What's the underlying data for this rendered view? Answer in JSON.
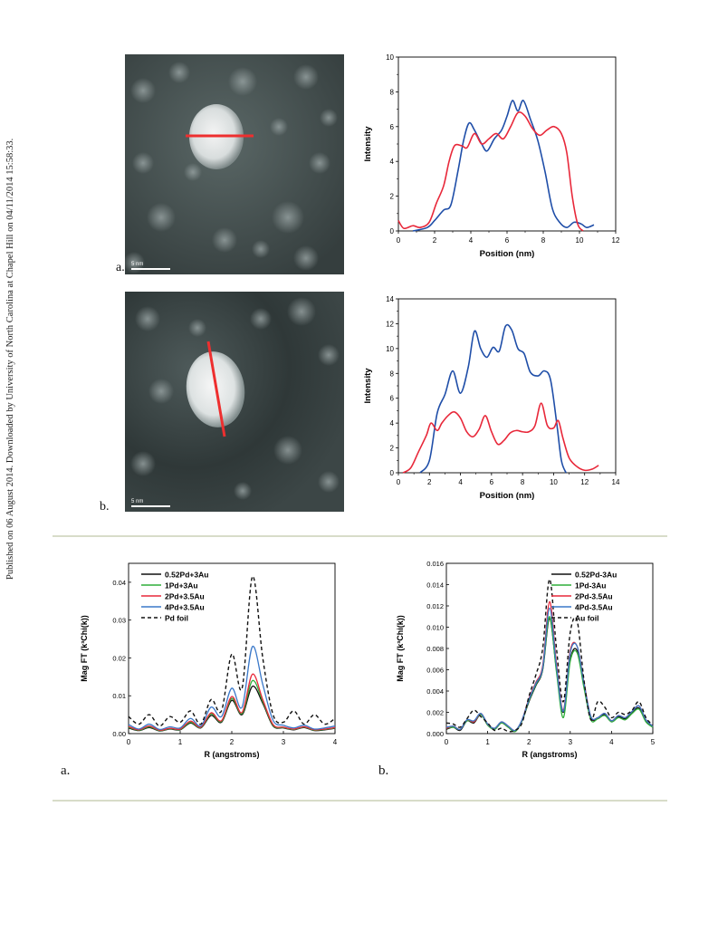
{
  "sidebar": {
    "text": "Published on 06 August 2014. Downloaded by University of North Carolina at Chapel Hill on 04/11/2014 15:58:33."
  },
  "figure_top": {
    "panel_a": {
      "label": "a.",
      "scale_bar_text": "5 nm",
      "chart_data": {
        "type": "line",
        "xlabel": "Position (nm)",
        "ylabel": "Intensity",
        "xlim": [
          0,
          12
        ],
        "ylim": [
          0,
          10
        ],
        "xticks": [
          0,
          2,
          4,
          6,
          8,
          10,
          12
        ],
        "yticks": [
          0,
          2,
          4,
          6,
          8,
          10
        ],
        "series": [
          {
            "color": "#1f4ea8",
            "points": [
              [
                0.8,
                0.0
              ],
              [
                1.6,
                0.2
              ],
              [
                2.0,
                0.6
              ],
              [
                2.5,
                1.2
              ],
              [
                2.9,
                1.5
              ],
              [
                3.3,
                3.5
              ],
              [
                3.6,
                5.2
              ],
              [
                3.9,
                6.2
              ],
              [
                4.2,
                5.8
              ],
              [
                4.6,
                5.0
              ],
              [
                4.9,
                4.6
              ],
              [
                5.3,
                5.3
              ],
              [
                5.7,
                5.8
              ],
              [
                6.0,
                6.6
              ],
              [
                6.3,
                7.5
              ],
              [
                6.6,
                6.9
              ],
              [
                6.9,
                7.5
              ],
              [
                7.3,
                6.4
              ],
              [
                7.7,
                5.2
              ],
              [
                8.1,
                3.4
              ],
              [
                8.5,
                1.3
              ],
              [
                8.9,
                0.5
              ],
              [
                9.3,
                0.2
              ],
              [
                9.7,
                0.5
              ],
              [
                10.1,
                0.4
              ],
              [
                10.4,
                0.2
              ],
              [
                10.8,
                0.35
              ]
            ]
          },
          {
            "color": "#e8283a",
            "points": [
              [
                0.0,
                0.6
              ],
              [
                0.3,
                0.15
              ],
              [
                0.8,
                0.3
              ],
              [
                1.2,
                0.2
              ],
              [
                1.7,
                0.5
              ],
              [
                2.1,
                1.6
              ],
              [
                2.5,
                2.6
              ],
              [
                2.8,
                4.0
              ],
              [
                3.1,
                4.9
              ],
              [
                3.5,
                4.9
              ],
              [
                3.8,
                4.8
              ],
              [
                4.2,
                5.6
              ],
              [
                4.6,
                5.0
              ],
              [
                5.0,
                5.3
              ],
              [
                5.4,
                5.6
              ],
              [
                5.8,
                5.3
              ],
              [
                6.2,
                6.0
              ],
              [
                6.6,
                6.8
              ],
              [
                7.0,
                6.6
              ],
              [
                7.4,
                5.9
              ],
              [
                7.8,
                5.5
              ],
              [
                8.2,
                5.8
              ],
              [
                8.6,
                6.0
              ],
              [
                9.0,
                5.6
              ],
              [
                9.3,
                4.5
              ],
              [
                9.6,
                2.0
              ],
              [
                9.9,
                0.4
              ],
              [
                10.2,
                0.0
              ]
            ]
          }
        ]
      }
    },
    "panel_b": {
      "label": "b.",
      "scale_bar_text": "5 nm",
      "chart_data": {
        "type": "line",
        "xlabel": "Position (nm)",
        "ylabel": "Intensity",
        "xlim": [
          0,
          14
        ],
        "ylim": [
          0,
          14
        ],
        "xticks": [
          0,
          2,
          4,
          6,
          8,
          10,
          12,
          14
        ],
        "yticks": [
          0,
          2,
          4,
          6,
          8,
          10,
          12,
          14
        ],
        "series": [
          {
            "color": "#1f4ea8",
            "points": [
              [
                1.4,
                0.0
              ],
              [
                2.0,
                1.0
              ],
              [
                2.5,
                4.8
              ],
              [
                3.0,
                6.3
              ],
              [
                3.5,
                8.2
              ],
              [
                4.0,
                6.4
              ],
              [
                4.5,
                8.5
              ],
              [
                4.9,
                11.4
              ],
              [
                5.3,
                10.0
              ],
              [
                5.7,
                9.3
              ],
              [
                6.1,
                10.1
              ],
              [
                6.5,
                9.8
              ],
              [
                6.9,
                11.8
              ],
              [
                7.3,
                11.5
              ],
              [
                7.7,
                10.0
              ],
              [
                8.1,
                9.6
              ],
              [
                8.5,
                8.1
              ],
              [
                9.0,
                7.8
              ],
              [
                9.4,
                8.2
              ],
              [
                9.8,
                7.5
              ],
              [
                10.2,
                4.0
              ],
              [
                10.5,
                1.0
              ],
              [
                10.8,
                0.0
              ]
            ]
          },
          {
            "color": "#e8283a",
            "points": [
              [
                0.3,
                0.0
              ],
              [
                0.8,
                0.4
              ],
              [
                1.3,
                1.7
              ],
              [
                1.8,
                3.0
              ],
              [
                2.1,
                4.0
              ],
              [
                2.5,
                3.4
              ],
              [
                2.8,
                4.0
              ],
              [
                3.2,
                4.6
              ],
              [
                3.6,
                4.9
              ],
              [
                4.0,
                4.4
              ],
              [
                4.4,
                3.3
              ],
              [
                4.8,
                2.9
              ],
              [
                5.2,
                3.5
              ],
              [
                5.6,
                4.6
              ],
              [
                6.0,
                3.3
              ],
              [
                6.4,
                2.3
              ],
              [
                6.8,
                2.6
              ],
              [
                7.2,
                3.2
              ],
              [
                7.6,
                3.4
              ],
              [
                8.0,
                3.3
              ],
              [
                8.4,
                3.3
              ],
              [
                8.8,
                3.8
              ],
              [
                9.2,
                5.6
              ],
              [
                9.6,
                3.8
              ],
              [
                10.0,
                3.6
              ],
              [
                10.3,
                4.2
              ],
              [
                10.6,
                2.8
              ],
              [
                11.0,
                1.2
              ],
              [
                11.5,
                0.5
              ],
              [
                12.0,
                0.2
              ],
              [
                12.5,
                0.3
              ],
              [
                12.9,
                0.6
              ]
            ]
          }
        ]
      }
    }
  },
  "figure_bottom": {
    "panel_a": {
      "label": "a.",
      "chart_data": {
        "type": "line",
        "xlabel": "R (angstroms)",
        "ylabel": "Mag FT (k³Chi(k))",
        "xlim": [
          0,
          4
        ],
        "ylim": [
          0,
          0.045
        ],
        "xticks": [
          "0",
          "1",
          "2",
          "3",
          "4"
        ],
        "yticks": [
          "0.00",
          "0.01",
          "0.02",
          "0.03",
          "0.04"
        ],
        "legend": [
          "0.52Pd+3Au",
          "1Pd+3Au",
          "2Pd+3.5Au",
          "4Pd+3.5Au",
          "Pd foil"
        ],
        "series": [
          {
            "name": "0.52Pd+3Au",
            "color": "#111111",
            "dash": false,
            "y": [
              0.0015,
              0.0008,
              0.0016,
              0.0007,
              0.0012,
              0.001,
              0.0028,
              0.0015,
              0.0048,
              0.003,
              0.0088,
              0.005,
              0.0125,
              0.008,
              0.002,
              0.0015,
              0.001,
              0.0016,
              0.0008,
              0.001,
              0.0014
            ]
          },
          {
            "name": "1Pd+3Au",
            "color": "#2fae3a",
            "dash": false,
            "y": [
              0.0017,
              0.0009,
              0.0018,
              0.0008,
              0.0013,
              0.0011,
              0.003,
              0.0016,
              0.0052,
              0.0032,
              0.0093,
              0.0053,
              0.014,
              0.0085,
              0.0022,
              0.0016,
              0.0011,
              0.0017,
              0.0009,
              0.0011,
              0.0015
            ]
          },
          {
            "name": "2Pd+3.5Au",
            "color": "#e8283a",
            "dash": false,
            "y": [
              0.0019,
              0.001,
              0.002,
              0.0009,
              0.0014,
              0.0012,
              0.0033,
              0.0017,
              0.0055,
              0.0034,
              0.0098,
              0.0056,
              0.0157,
              0.009,
              0.0024,
              0.0017,
              0.0012,
              0.0018,
              0.001,
              0.0012,
              0.0016
            ]
          },
          {
            "name": "4Pd+3.5Au",
            "color": "#3a78c9",
            "dash": false,
            "y": [
              0.0024,
              0.0012,
              0.0025,
              0.0011,
              0.0018,
              0.0015,
              0.004,
              0.002,
              0.007,
              0.0045,
              0.012,
              0.007,
              0.023,
              0.013,
              0.0035,
              0.0022,
              0.0015,
              0.0022,
              0.0012,
              0.0015,
              0.002
            ]
          },
          {
            "name": "Pd foil",
            "color": "#111111",
            "dash": true,
            "y": [
              0.0045,
              0.0025,
              0.005,
              0.002,
              0.0045,
              0.003,
              0.006,
              0.0025,
              0.009,
              0.006,
              0.021,
              0.012,
              0.0415,
              0.02,
              0.005,
              0.003,
              0.006,
              0.0025,
              0.005,
              0.0025,
              0.004
            ]
          }
        ]
      }
    },
    "panel_b": {
      "label": "b.",
      "chart_data": {
        "type": "line",
        "xlabel": "R (angstroms)",
        "ylabel": "Mag FT (k³Chi(k))",
        "xlim": [
          0,
          5
        ],
        "ylim": [
          0,
          0.016
        ],
        "xticks": [
          "0",
          "1",
          "2",
          "3",
          "4",
          "5"
        ],
        "yticks": [
          "0.000",
          "0.002",
          "0.004",
          "0.006",
          "0.008",
          "0.010",
          "0.012",
          "0.014",
          "0.016"
        ],
        "legend": [
          "0.52Pd-3Au",
          "1Pd-3Au",
          "2Pd-3.5Au",
          "4Pd-3.5Au",
          "Au foil"
        ],
        "series": [
          {
            "name": "0.52Pd-3Au",
            "color": "#111111",
            "dash": false,
            "y": [
              0.0004,
              0.0006,
              0.0003,
              0.0012,
              0.001,
              0.0018,
              0.0008,
              0.0004,
              0.001,
              0.0006,
              0.0002,
              0.0012,
              0.003,
              0.0045,
              0.006,
              0.0108,
              0.006,
              0.002,
              0.007,
              0.0078,
              0.0045,
              0.0015,
              0.0014,
              0.0018,
              0.0012,
              0.0016,
              0.0014,
              0.002,
              0.0024,
              0.0012,
              0.0006
            ]
          },
          {
            "name": "1Pd-3Au",
            "color": "#2fae3a",
            "dash": false,
            "y": [
              0.0005,
              0.0006,
              0.0004,
              0.0012,
              0.0011,
              0.0018,
              0.0008,
              0.0004,
              0.001,
              0.0006,
              0.0002,
              0.0012,
              0.0031,
              0.0046,
              0.0061,
              0.011,
              0.0058,
              0.0015,
              0.0068,
              0.0076,
              0.0043,
              0.0013,
              0.0014,
              0.0017,
              0.0011,
              0.0015,
              0.0013,
              0.0019,
              0.0023,
              0.0011,
              0.0006
            ]
          },
          {
            "name": "2Pd-3.5Au",
            "color": "#e8283a",
            "dash": false,
            "y": [
              0.0005,
              0.0007,
              0.0004,
              0.0013,
              0.0011,
              0.0019,
              0.0009,
              0.0005,
              0.0011,
              0.0007,
              0.0003,
              0.0013,
              0.0033,
              0.0048,
              0.0064,
              0.0124,
              0.0066,
              0.0022,
              0.0078,
              0.0082,
              0.0048,
              0.0016,
              0.0015,
              0.0019,
              0.0012,
              0.0017,
              0.0015,
              0.0021,
              0.0026,
              0.0013,
              0.0007
            ]
          },
          {
            "name": "4Pd-3.5Au",
            "color": "#3a78c9",
            "dash": false,
            "y": [
              0.0006,
              0.0007,
              0.0004,
              0.0013,
              0.0012,
              0.0019,
              0.0009,
              0.0005,
              0.0011,
              0.0007,
              0.0003,
              0.0013,
              0.0032,
              0.0047,
              0.0062,
              0.0118,
              0.0063,
              0.0021,
              0.0076,
              0.0082,
              0.0047,
              0.0016,
              0.0015,
              0.0019,
              0.0012,
              0.0017,
              0.0015,
              0.0021,
              0.0026,
              0.0013,
              0.0007
            ]
          },
          {
            "name": "Au foil",
            "color": "#111111",
            "dash": true,
            "y": [
              0.001,
              0.0009,
              0.0006,
              0.0014,
              0.0022,
              0.0016,
              0.001,
              0.0003,
              0.0005,
              0.0002,
              0.0003,
              0.001,
              0.0035,
              0.0055,
              0.008,
              0.0145,
              0.008,
              0.003,
              0.0095,
              0.0106,
              0.005,
              0.0013,
              0.003,
              0.0025,
              0.0015,
              0.002,
              0.0018,
              0.0022,
              0.003,
              0.0015,
              0.0008
            ]
          }
        ]
      }
    }
  }
}
